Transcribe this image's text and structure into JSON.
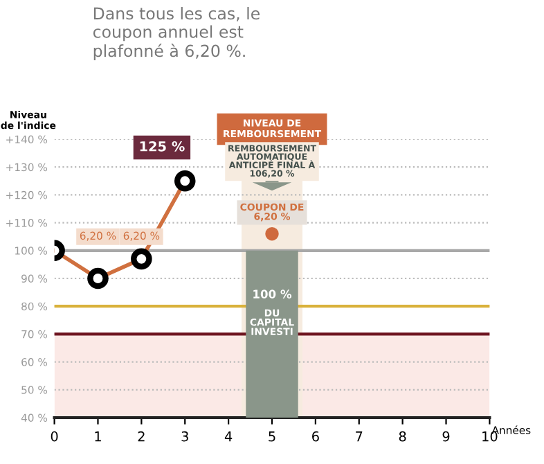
{
  "chart_data": {
    "type": "line",
    "title": "Dans tous les cas, le\ncoupon annuel est\nplafonné à 6,20 %.",
    "ylabel": "Niveau\nde l'indice",
    "xlabel": "Années",
    "xlim": [
      0,
      10
    ],
    "xticks": [
      0,
      1,
      2,
      3,
      4,
      5,
      6,
      7,
      8,
      9,
      10
    ],
    "ylim": [
      40,
      140
    ],
    "yticks": [
      {
        "value": 40,
        "label": "40 %"
      },
      {
        "value": 50,
        "label": "50 %"
      },
      {
        "value": 60,
        "label": "60 %"
      },
      {
        "value": 70,
        "label": "70 %"
      },
      {
        "value": 80,
        "label": "80 %"
      },
      {
        "value": 90,
        "label": "90 %"
      },
      {
        "value": 100,
        "label": "100 %"
      },
      {
        "value": 110,
        "label": "+110 %"
      },
      {
        "value": 120,
        "label": "+120 %"
      },
      {
        "value": 130,
        "label": "+130 %"
      },
      {
        "value": 140,
        "label": "+140 %"
      }
    ],
    "grid": "y",
    "series": [
      {
        "x": [
          0,
          1,
          2,
          3
        ],
        "values": [
          100,
          90,
          97,
          125
        ],
        "color": "#d0703f",
        "marker": "circle",
        "line_style": "solid"
      },
      {
        "type": "bar",
        "x": [
          5
        ],
        "values": [
          100
        ],
        "color": "#8a968a",
        "value_labels": [
          "100 %"
        ]
      }
    ],
    "ref_lines": [
      {
        "axis": "y",
        "value": 100,
        "color": "#a8a8a8"
      },
      {
        "axis": "y",
        "value": 80,
        "color": "#d9b13a"
      },
      {
        "axis": "y",
        "value": 70,
        "color": "#6e1520"
      }
    ],
    "bands": [
      {
        "axis": "y",
        "from": 40,
        "to": 70,
        "color": "#fbe9e6"
      },
      {
        "axis": "x",
        "from": 4.3,
        "to": 5.7,
        "color": "#f6ebdf",
        "label": "NIVEAU DE\nREMBOURSEMENT"
      }
    ],
    "annotations": [
      {
        "text": "125 %",
        "x": 3,
        "y": 125
      },
      {
        "text": "6,20 %",
        "x": 1,
        "y": 105
      },
      {
        "text": "6,20 %",
        "x": 2,
        "y": 105
      },
      "REMBOURSEMENT\nAUTOMATIQUE\nANTICIPÉ FINAL À\n106,20 %",
      "COUPON DE\n6,20 %",
      "DU\nCAPITAL\nINVESTI"
    ],
    "legend": false
  }
}
